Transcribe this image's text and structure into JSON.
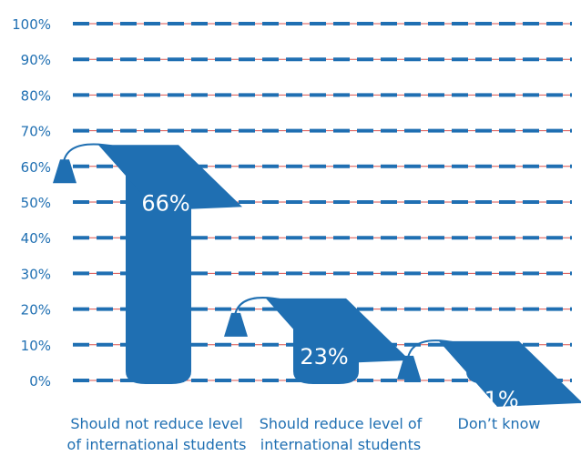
{
  "chart_data": {
    "type": "bar",
    "title": "",
    "xlabel": "",
    "ylabel": "",
    "ylim": [
      0,
      100
    ],
    "yticks": [
      "0%",
      "10%",
      "20%",
      "30%",
      "40%",
      "50%",
      "60%",
      "70%",
      "80%",
      "90%",
      "100%"
    ],
    "categories": [
      "Should not reduce level of international students",
      "Should reduce level of international students",
      "Don’t know"
    ],
    "values": [
      66,
      23,
      11
    ],
    "value_labels": [
      "66%",
      "23%",
      "11%"
    ],
    "marker": "graduation-cap",
    "grid": true,
    "colors": {
      "accent": "#1f6fb2",
      "gridline": "#d9534f",
      "label": "#1f6fb2",
      "value_text": "#ffffff"
    }
  }
}
